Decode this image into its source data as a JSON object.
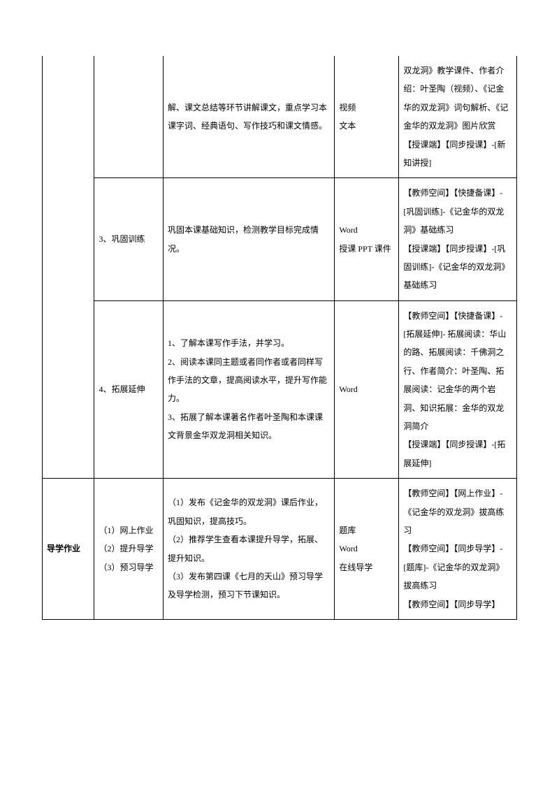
{
  "table": {
    "rows": [
      {
        "col1": "",
        "col2": "",
        "col3": "解、课文总结等环节讲解课文，重点学习本课字词、经典语句、写作技巧和课文情感。",
        "col4": "视频\n文本",
        "col5": "双龙洞》教学课件、作者介绍：叶圣陶（视频）、《记金华的双龙洞》词句解析、《记金华的双龙洞》图片欣赏\n【授课端】【同步授课】-[新知讲授]",
        "continuation": true
      },
      {
        "col1": "",
        "col2": "3、巩固训练",
        "col3": "巩固本课基础知识，检测教学目标完成情况。",
        "col4": "Word\n授课 PPT 课件",
        "col5": "【教师空间】【快捷备课】-[巩固训练]-《记金华的双龙洞》基础练习\n【授课端】【同步授课】-[巩固训练]-《记金华的双龙洞》基础练习",
        "col1_rowspan": false
      },
      {
        "col1": "",
        "col2": "4、拓展延伸",
        "col3": "1、了解本课写作手法，并学习。\n2、阅读本课同主题或者同作者或者同样写作手法的文章，提高阅读水平，提升写作能力。\n3、拓展了解本课著名作者叶圣陶和本课课文背景金华双龙洞相关知识。",
        "col4": "Word",
        "col5": "【教师空间】【快捷备课】-[拓展延伸]- 拓展阅读：华山的路、拓展阅读：千佛洞之行、作者简介：叶圣陶、拓展阅读：记金华的两个岩洞、知识拓展：金华的双龙洞简介\n【授课端】【同步授课】-[拓展延伸]",
        "col1_rowspan": false
      },
      {
        "col1": "导学作业",
        "col2": "（1）网上作业\n（2）提升导学\n（3）预习导学",
        "col3": "（1）发布《记金华的双龙洞》课后作业，巩固知识，提高技巧。\n（2）推荐学生查看本课提升导学，拓展、提升知识。\n（3）发布第四课《七月的天山》预习导学及导学检测，预习下节课知识。",
        "col4": "题库\nWord\n在线导学",
        "col5": "【教师空间】【网上作业】-《记金华的双龙洞》拔高练习\n【教师空间】【同步导学】-[题库]-《记金华的双龙洞》拔高练习\n【教师空间】【同步导学】",
        "col1_rowspan": false
      }
    ]
  }
}
